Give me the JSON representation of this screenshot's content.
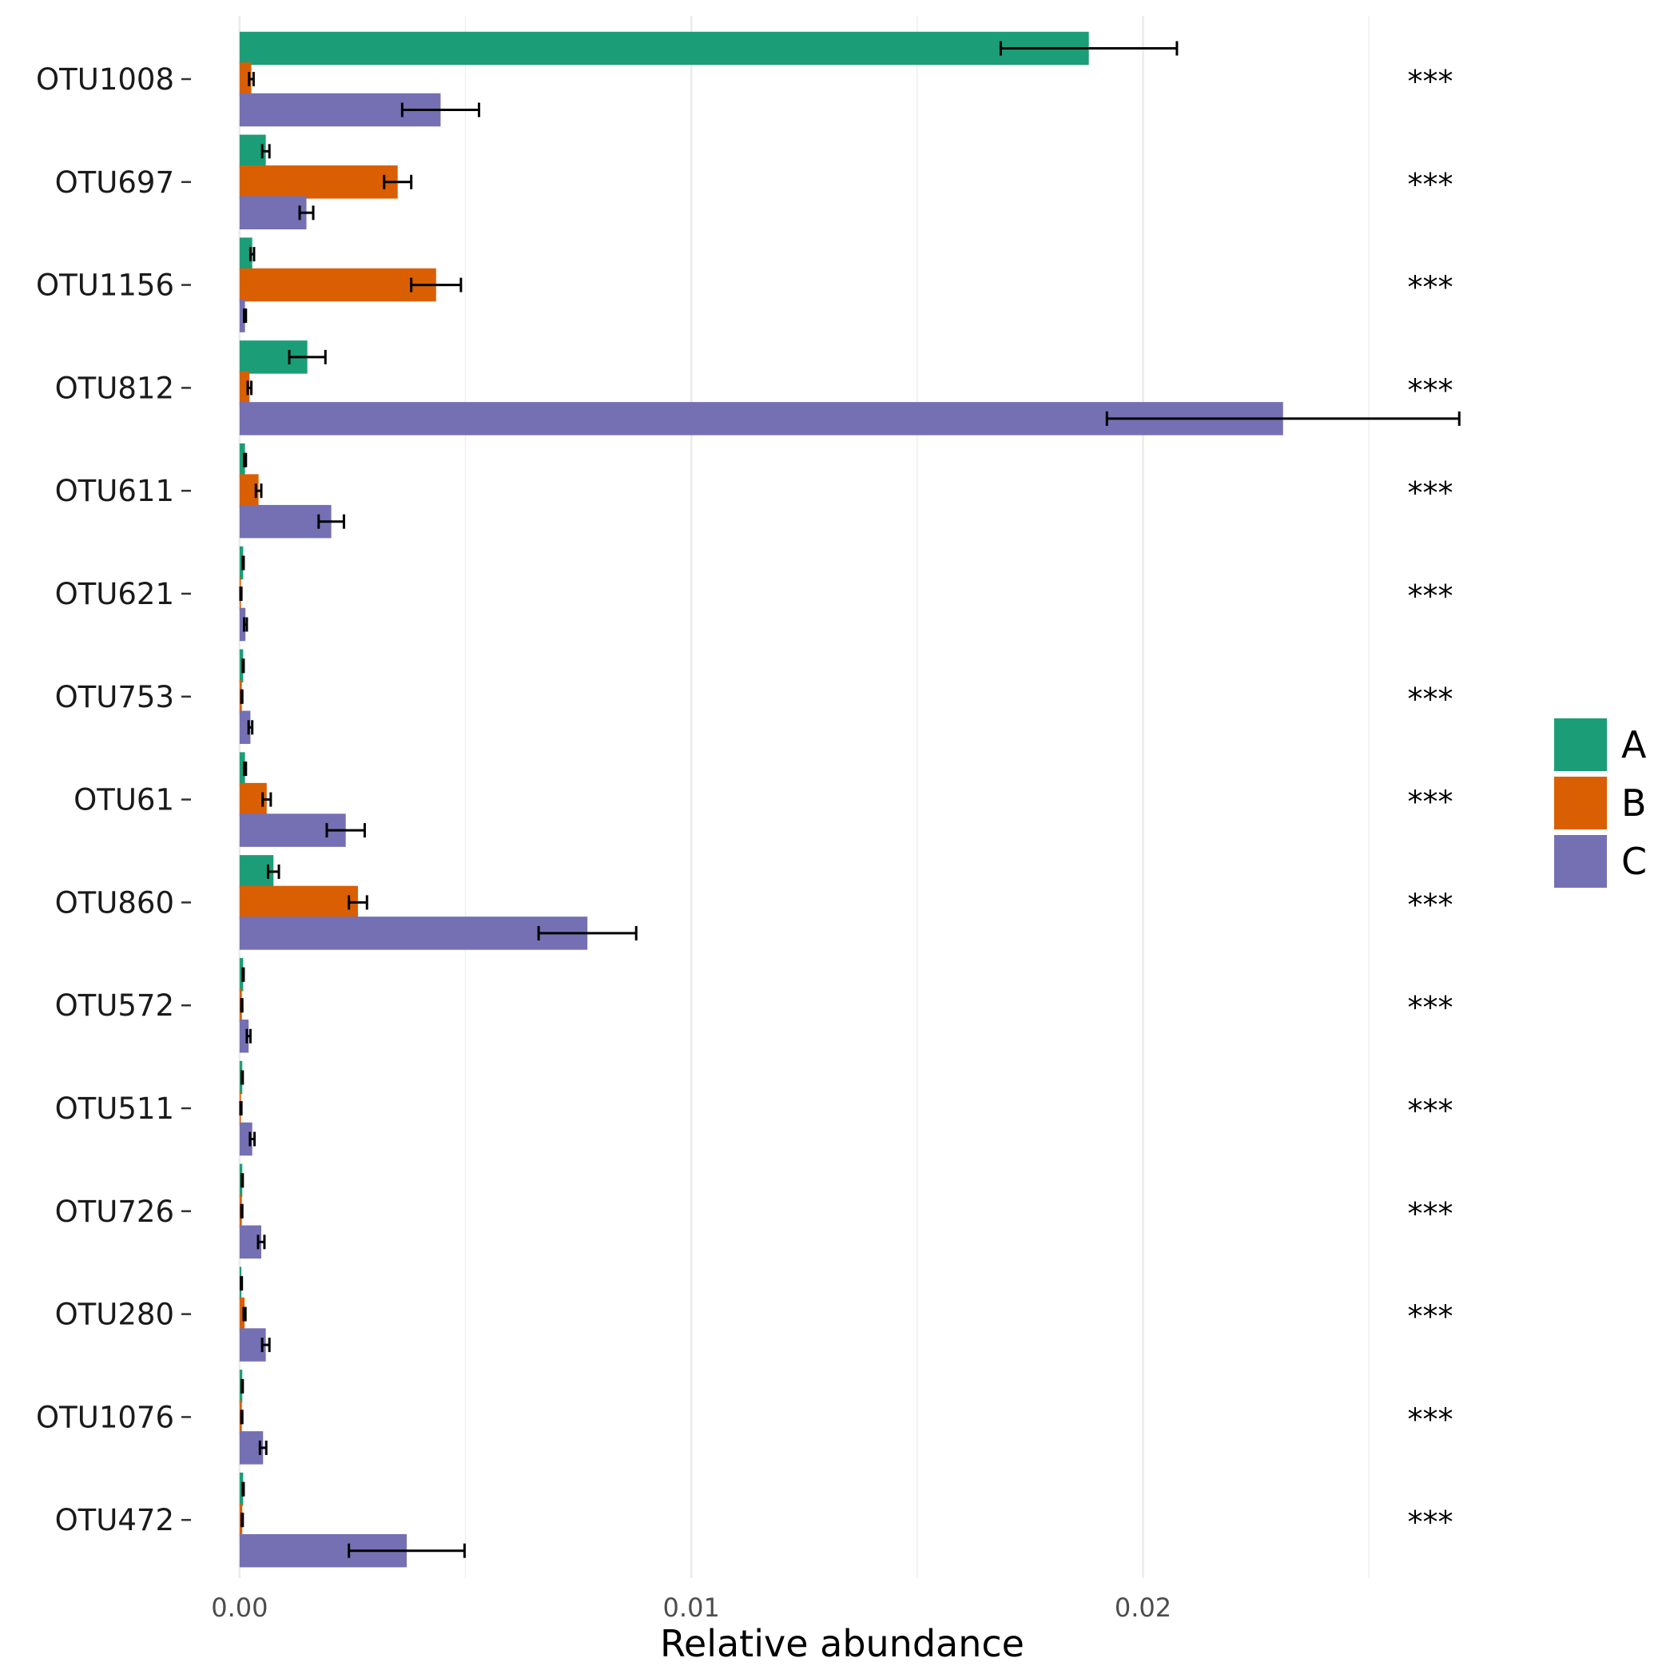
{
  "chart_data": {
    "type": "bar",
    "orientation": "horizontal",
    "xlabel": "Relative abundance",
    "ylabel": "",
    "xlim": [
      -0.0012,
      0.0288
    ],
    "x_ticks": [
      0,
      0.01,
      0.02
    ],
    "x_tick_labels": [
      "0.00",
      "0.01",
      "0.02"
    ],
    "x_minor_ticks": [
      0.005,
      0.015,
      0.025
    ],
    "grid": true,
    "legend_position": "right",
    "categories": [
      "OTU1008",
      "OTU697",
      "OTU1156",
      "OTU812",
      "OTU611",
      "OTU621",
      "OTU753",
      "OTU61",
      "OTU860",
      "OTU572",
      "OTU511",
      "OTU726",
      "OTU280",
      "OTU1076",
      "OTU472"
    ],
    "significance": [
      "***",
      "***",
      "***",
      "***",
      "***",
      "***",
      "***",
      "***",
      "***",
      "***",
      "***",
      "***",
      "***",
      "***",
      "***"
    ],
    "series": [
      {
        "name": "A",
        "color": "#1b9e77",
        "values": [
          0.0188,
          0.00058,
          0.00028,
          0.0015,
          0.00012,
          8e-05,
          8e-05,
          0.00012,
          0.00075,
          8e-05,
          6e-05,
          6e-05,
          4e-05,
          6e-05,
          8e-05
        ],
        "errors": [
          0.00195,
          8e-05,
          4e-05,
          0.0004,
          2e-05,
          1e-05,
          1e-05,
          2e-05,
          0.00012,
          1e-05,
          1e-05,
          1e-05,
          1e-05,
          1e-05,
          1e-05
        ]
      },
      {
        "name": "B",
        "color": "#d95f02",
        "values": [
          0.00026,
          0.0035,
          0.00435,
          0.00022,
          0.00042,
          3e-05,
          5e-05,
          0.0006,
          0.00262,
          5e-05,
          3e-05,
          5e-05,
          0.00011,
          5e-05,
          6e-05
        ],
        "errors": [
          5e-05,
          0.0003,
          0.00055,
          4e-05,
          6e-05,
          1e-05,
          1e-05,
          9e-05,
          0.0002,
          1e-05,
          1e-05,
          1e-05,
          2e-05,
          1e-05,
          1e-05
        ]
      },
      {
        "name": "C",
        "color": "#7570b3",
        "values": [
          0.00445,
          0.00148,
          0.00012,
          0.0231,
          0.00203,
          0.00013,
          0.00024,
          0.00235,
          0.0077,
          0.0002,
          0.00028,
          0.00048,
          0.00058,
          0.00052,
          0.0037
        ],
        "errors": [
          0.00085,
          0.00015,
          2e-05,
          0.0039,
          0.00028,
          3e-05,
          4e-05,
          0.00042,
          0.00108,
          4e-05,
          5e-05,
          7e-05,
          8e-05,
          7e-05,
          0.00128
        ]
      }
    ]
  }
}
